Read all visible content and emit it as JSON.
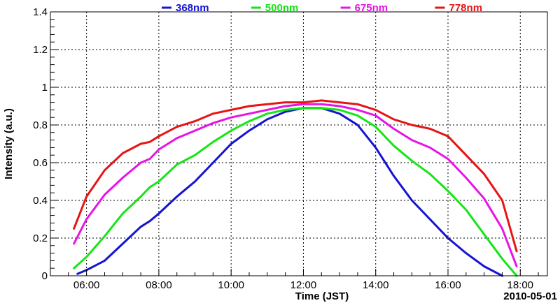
{
  "chart_data": {
    "type": "line",
    "title": "",
    "xlabel": "Time (JST)",
    "ylabel": "Intensity (a.u.)",
    "date_label": "2010-05-01",
    "x_unit": "hour",
    "xlim": [
      5.0,
      18.75
    ],
    "ylim": [
      0,
      1.4
    ],
    "grid": true,
    "legend_position": "top",
    "x_ticks": [
      {
        "value": 6,
        "label": "06:00"
      },
      {
        "value": 8,
        "label": "08:00"
      },
      {
        "value": 10,
        "label": "10:00"
      },
      {
        "value": 12,
        "label": "12:00"
      },
      {
        "value": 14,
        "label": "14:00"
      },
      {
        "value": 16,
        "label": "16:00"
      },
      {
        "value": 18,
        "label": "18:00"
      }
    ],
    "y_ticks": [
      {
        "value": 0,
        "label": "0"
      },
      {
        "value": 0.2,
        "label": "0.2"
      },
      {
        "value": 0.4,
        "label": "0.4"
      },
      {
        "value": 0.6,
        "label": "0.6"
      },
      {
        "value": 0.8,
        "label": "0.8"
      },
      {
        "value": 1.0,
        "label": "1"
      },
      {
        "value": 1.2,
        "label": "1.2"
      },
      {
        "value": 1.4,
        "label": "1.4"
      }
    ],
    "series": [
      {
        "name": "368nm",
        "color": "#1414d2",
        "points": [
          [
            5.75,
            0.01
          ],
          [
            6.0,
            0.03
          ],
          [
            6.5,
            0.08
          ],
          [
            7.0,
            0.17
          ],
          [
            7.5,
            0.26
          ],
          [
            7.75,
            0.29
          ],
          [
            8.0,
            0.33
          ],
          [
            8.5,
            0.42
          ],
          [
            9.0,
            0.5
          ],
          [
            9.5,
            0.6
          ],
          [
            10.0,
            0.7
          ],
          [
            10.5,
            0.77
          ],
          [
            11.0,
            0.83
          ],
          [
            11.5,
            0.87
          ],
          [
            12.0,
            0.89
          ],
          [
            12.5,
            0.89
          ],
          [
            13.0,
            0.86
          ],
          [
            13.5,
            0.8
          ],
          [
            14.0,
            0.68
          ],
          [
            14.5,
            0.53
          ],
          [
            15.0,
            0.4
          ],
          [
            15.5,
            0.3
          ],
          [
            16.0,
            0.2
          ],
          [
            16.5,
            0.12
          ],
          [
            17.0,
            0.05
          ],
          [
            17.5,
            0.0
          ]
        ]
      },
      {
        "name": "500nm",
        "color": "#14e614",
        "points": [
          [
            5.65,
            0.04
          ],
          [
            6.0,
            0.1
          ],
          [
            6.5,
            0.21
          ],
          [
            7.0,
            0.33
          ],
          [
            7.5,
            0.42
          ],
          [
            7.75,
            0.47
          ],
          [
            8.0,
            0.5
          ],
          [
            8.5,
            0.59
          ],
          [
            9.0,
            0.64
          ],
          [
            9.5,
            0.71
          ],
          [
            10.0,
            0.77
          ],
          [
            10.5,
            0.82
          ],
          [
            11.0,
            0.86
          ],
          [
            11.5,
            0.88
          ],
          [
            12.0,
            0.89
          ],
          [
            12.5,
            0.89
          ],
          [
            13.0,
            0.88
          ],
          [
            13.5,
            0.85
          ],
          [
            14.0,
            0.79
          ],
          [
            14.5,
            0.69
          ],
          [
            15.0,
            0.61
          ],
          [
            15.5,
            0.54
          ],
          [
            16.0,
            0.45
          ],
          [
            16.5,
            0.35
          ],
          [
            17.0,
            0.22
          ],
          [
            17.5,
            0.09
          ],
          [
            17.9,
            0.0
          ]
        ]
      },
      {
        "name": "675nm",
        "color": "#e614e6",
        "points": [
          [
            5.65,
            0.17
          ],
          [
            6.0,
            0.3
          ],
          [
            6.5,
            0.43
          ],
          [
            7.0,
            0.52
          ],
          [
            7.5,
            0.6
          ],
          [
            7.75,
            0.62
          ],
          [
            8.0,
            0.67
          ],
          [
            8.5,
            0.73
          ],
          [
            9.0,
            0.77
          ],
          [
            9.5,
            0.81
          ],
          [
            10.0,
            0.84
          ],
          [
            10.5,
            0.86
          ],
          [
            11.0,
            0.88
          ],
          [
            11.5,
            0.9
          ],
          [
            12.0,
            0.91
          ],
          [
            12.5,
            0.91
          ],
          [
            13.0,
            0.9
          ],
          [
            13.5,
            0.88
          ],
          [
            14.0,
            0.85
          ],
          [
            14.5,
            0.78
          ],
          [
            15.0,
            0.72
          ],
          [
            15.5,
            0.68
          ],
          [
            16.0,
            0.62
          ],
          [
            16.5,
            0.52
          ],
          [
            17.0,
            0.41
          ],
          [
            17.5,
            0.25
          ],
          [
            17.9,
            0.05
          ]
        ]
      },
      {
        "name": "778nm",
        "color": "#e61414",
        "points": [
          [
            5.65,
            0.25
          ],
          [
            6.0,
            0.42
          ],
          [
            6.5,
            0.56
          ],
          [
            7.0,
            0.65
          ],
          [
            7.5,
            0.7
          ],
          [
            7.75,
            0.71
          ],
          [
            8.0,
            0.74
          ],
          [
            8.5,
            0.79
          ],
          [
            9.0,
            0.82
          ],
          [
            9.5,
            0.86
          ],
          [
            10.0,
            0.88
          ],
          [
            10.5,
            0.9
          ],
          [
            11.0,
            0.91
          ],
          [
            11.5,
            0.92
          ],
          [
            12.0,
            0.92
          ],
          [
            12.5,
            0.93
          ],
          [
            13.0,
            0.92
          ],
          [
            13.5,
            0.91
          ],
          [
            14.0,
            0.88
          ],
          [
            14.5,
            0.83
          ],
          [
            15.0,
            0.8
          ],
          [
            15.5,
            0.78
          ],
          [
            16.0,
            0.74
          ],
          [
            16.5,
            0.64
          ],
          [
            17.0,
            0.54
          ],
          [
            17.5,
            0.4
          ],
          [
            17.9,
            0.13
          ]
        ]
      }
    ]
  }
}
